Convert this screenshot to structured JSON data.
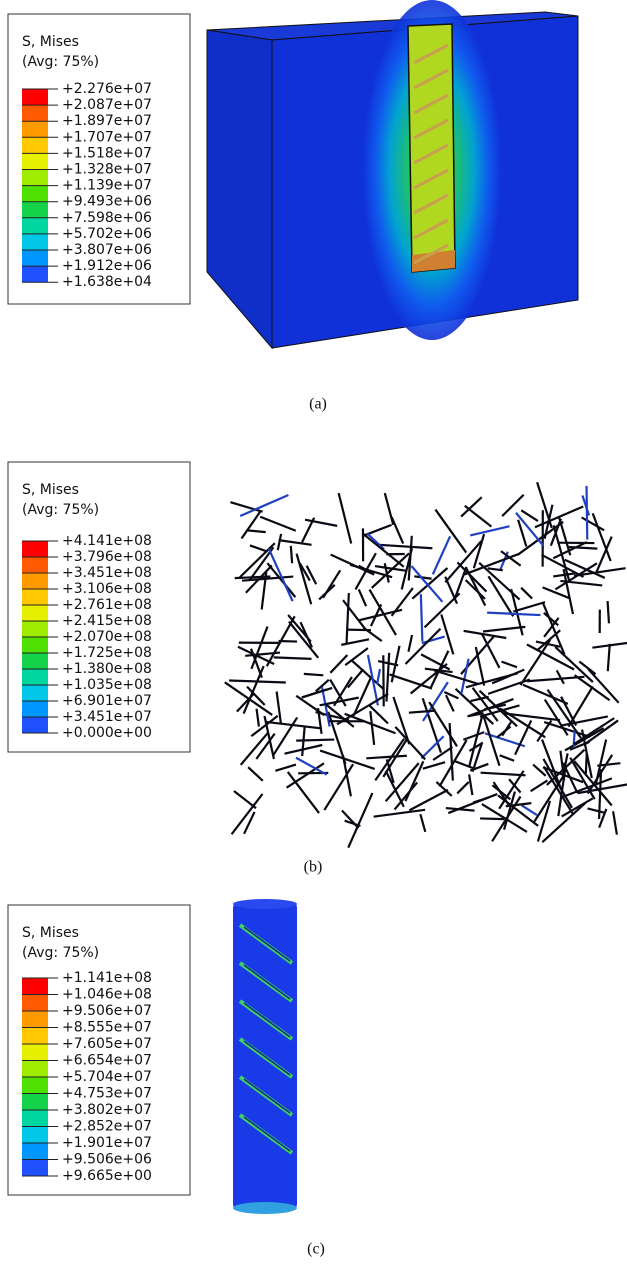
{
  "panels": [
    {
      "legend": {
        "title": "S, Mises",
        "subtitle": "(Avg: 75%)",
        "values": [
          "+2.276e+07",
          "+2.087e+07",
          "+1.897e+07",
          "+1.707e+07",
          "+1.518e+07",
          "+1.328e+07",
          "+1.139e+07",
          "+9.493e+06",
          "+7.598e+06",
          "+5.702e+06",
          "+3.807e+06",
          "+1.912e+06",
          "+1.638e+04"
        ]
      },
      "caption": "(a)"
    },
    {
      "legend": {
        "title": "S, Mises",
        "subtitle": "(Avg: 75%)",
        "values": [
          "+4.141e+08",
          "+3.796e+08",
          "+3.451e+08",
          "+3.106e+08",
          "+2.761e+08",
          "+2.415e+08",
          "+2.070e+08",
          "+1.725e+08",
          "+1.380e+08",
          "+1.035e+08",
          "+6.901e+07",
          "+3.451e+07",
          "+0.000e+00"
        ]
      },
      "caption": "(b)"
    },
    {
      "legend": {
        "title": "S, Mises",
        "subtitle": "(Avg: 75%)",
        "values": [
          "+1.141e+08",
          "+1.046e+08",
          "+9.506e+07",
          "+8.555e+07",
          "+7.605e+07",
          "+6.654e+07",
          "+5.704e+07",
          "+4.753e+07",
          "+3.802e+07",
          "+2.852e+07",
          "+1.901e+07",
          "+9.506e+06",
          "+9.665e+00"
        ]
      },
      "caption": "(c)"
    }
  ]
}
